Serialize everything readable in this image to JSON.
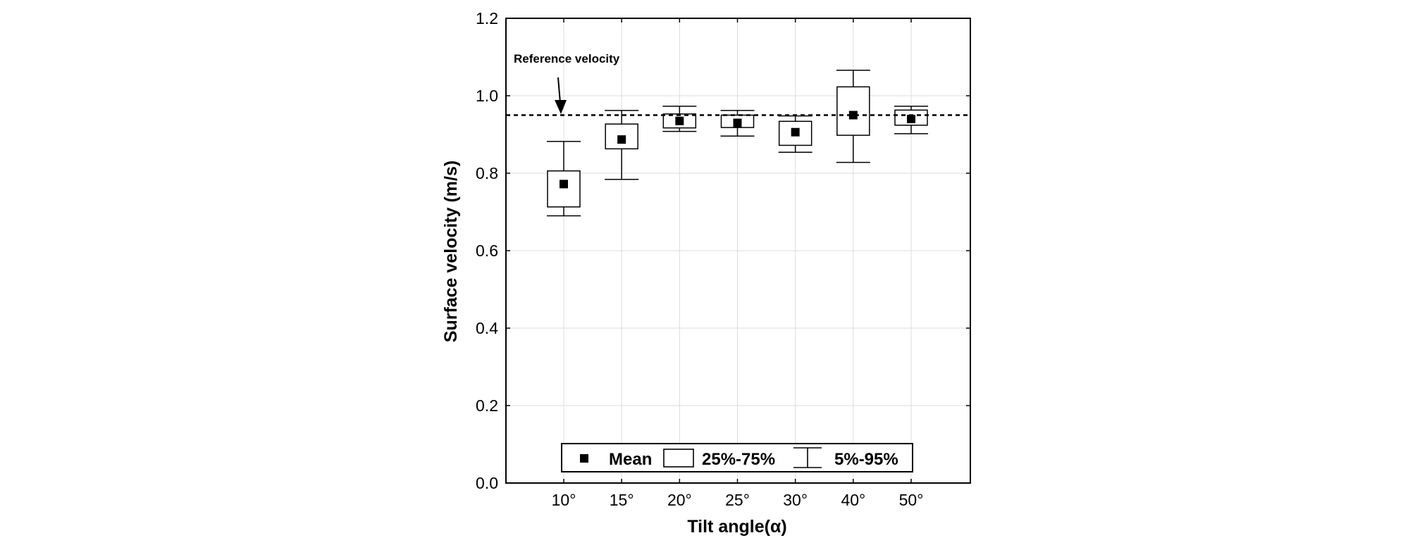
{
  "chart_data": {
    "type": "box",
    "xlabel": "Tilt angle(α)",
    "ylabel": "Surface velocity (m/s)",
    "ylim": [
      0.0,
      1.2
    ],
    "yticks": [
      "0.0",
      "0.2",
      "0.4",
      "0.6",
      "0.8",
      "1.0",
      "1.2"
    ],
    "grid": true,
    "categories": [
      "10°",
      "15°",
      "20°",
      "25°",
      "30°",
      "40°",
      "50°"
    ],
    "boxes": [
      {
        "category": "10°",
        "mean": 0.772,
        "q25": 0.713,
        "q75": 0.806,
        "p5": 0.69,
        "p95": 0.882
      },
      {
        "category": "15°",
        "mean": 0.887,
        "q25": 0.863,
        "q75": 0.927,
        "p5": 0.784,
        "p95": 0.962
      },
      {
        "category": "20°",
        "mean": 0.935,
        "q25": 0.917,
        "q75": 0.953,
        "p5": 0.908,
        "p95": 0.973
      },
      {
        "category": "25°",
        "mean": 0.93,
        "q25": 0.918,
        "q75": 0.95,
        "p5": 0.896,
        "p95": 0.962
      },
      {
        "category": "30°",
        "mean": 0.906,
        "q25": 0.872,
        "q75": 0.934,
        "p5": 0.854,
        "p95": 0.948
      },
      {
        "category": "40°",
        "mean": 0.95,
        "q25": 0.898,
        "q75": 1.023,
        "p5": 0.828,
        "p95": 1.066
      },
      {
        "category": "50°",
        "mean": 0.94,
        "q25": 0.924,
        "q75": 0.963,
        "p5": 0.902,
        "p95": 0.973
      }
    ],
    "reference_line": {
      "value": 0.95,
      "style": "dashed"
    },
    "annotation": {
      "text": "Reference velocity",
      "arrow_to": "10°"
    },
    "legend": {
      "placement": "bottom-center",
      "entries": [
        {
          "symbol": "filled-square",
          "label": "Mean"
        },
        {
          "symbol": "box",
          "label": "25%-75%"
        },
        {
          "symbol": "whisker",
          "label": "5%-95%"
        }
      ]
    }
  }
}
